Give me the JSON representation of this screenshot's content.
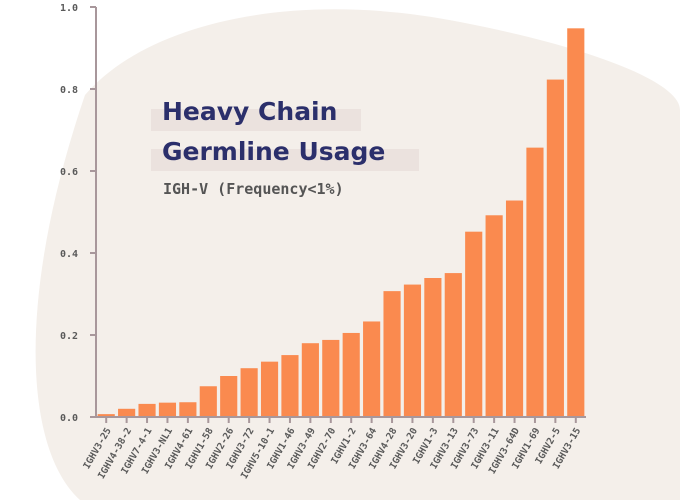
{
  "chart_data": {
    "type": "bar",
    "title_lines": [
      "Heavy Chain",
      "Germline Usage"
    ],
    "subtitle": "IGH-V (Frequency<1%)",
    "xlabel": "",
    "ylabel": "",
    "ylim": [
      0,
      1.0
    ],
    "yticks": [
      "0.0",
      "0.2",
      "0.4",
      "0.6",
      "0.8",
      "1.0"
    ],
    "grid": false,
    "categories": [
      "IGHV3-25",
      "IGHV4-38-2",
      "IGHV7-4-1",
      "IGHV3-NL1",
      "IGHV4-61",
      "IGHV1-58",
      "IGHV2-26",
      "IGHV3-72",
      "IGHV5-10-1",
      "IGHV1-46",
      "IGHV3-49",
      "IGHV2-70",
      "IGHV1-2",
      "IGHV3-64",
      "IGHV4-28",
      "IGHV3-20",
      "IGHV1-3",
      "IGHV3-13",
      "IGHV3-73",
      "IGHV3-11",
      "IGHV3-64D",
      "IGHV1-69",
      "IGHV2-5",
      "IGHV3-15"
    ],
    "values": [
      0.007,
      0.02,
      0.032,
      0.035,
      0.036,
      0.075,
      0.1,
      0.119,
      0.135,
      0.151,
      0.18,
      0.188,
      0.205,
      0.233,
      0.307,
      0.323,
      0.339,
      0.351,
      0.452,
      0.492,
      0.528,
      0.657,
      0.823,
      0.948
    ],
    "colors": {
      "bar": "#fa8a4f",
      "blob": "#f4efea",
      "axis": "#a8979b",
      "title": "#2b2f6b",
      "title_highlight": "#ebe2de"
    }
  }
}
